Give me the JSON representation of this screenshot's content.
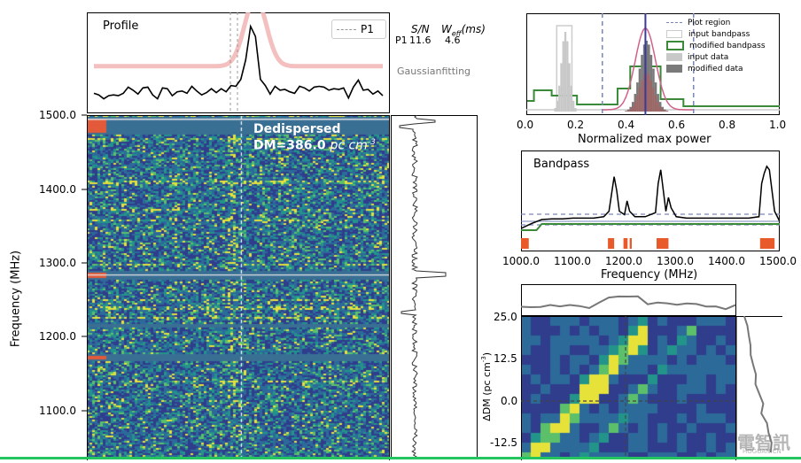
{
  "profile": {
    "title": "Profile",
    "legend_label": "P1",
    "sn_header": "S/N",
    "weff_header": "W",
    "weff_sub": "eff",
    "weff_unit": "(ms)",
    "row_label": "P1",
    "sn_value": "11.6",
    "weff_value": "4.6",
    "fit_label": "Gaussianfitting",
    "colors": {
      "profile_line": "#000000",
      "fit_line": "#f2b8b8",
      "marker": "#888888"
    }
  },
  "waterfall": {
    "title": "Dedispersed",
    "dm_label": "DM=386.0",
    "dm_unit": "pc cm",
    "dm_unit_exp": "-3",
    "ylabel": "Frequency (MHz)",
    "ytick_labels": [
      "1500.0",
      "1400.0",
      "1300.0",
      "1200.0",
      "1100.0"
    ],
    "colormap": [
      "#2f3d8c",
      "#2c6a9a",
      "#22948a",
      "#5cc06a",
      "#e6e23a"
    ]
  },
  "hist": {
    "xlabel": "Normalized max power",
    "xtick_labels": [
      "0.0",
      "0.2",
      "0.4",
      "0.6",
      "0.8",
      "1.0"
    ],
    "legend": [
      "Plot region",
      "input bandpass",
      "modified bandpass",
      "input data",
      "modified data"
    ]
  },
  "bandpass": {
    "title": "Bandpass",
    "xlabel": "Frequency (MHz)",
    "xtick_labels": [
      "1000.0",
      "1100.0",
      "1200.0",
      "1300.0",
      "1400.0",
      "1500.0"
    ]
  },
  "dmplot": {
    "ylabel": "ΔDM (pc cm",
    "ylabel_exp": "-3",
    "ylabel_close": ")",
    "ytick_labels": [
      "25.0",
      "12.5",
      "0.0",
      "-12.5"
    ]
  },
  "watermark": {
    "text": "電智訊",
    "sub": "HOGUAN.CN"
  },
  "chart_data": [
    {
      "type": "line",
      "name": "profile",
      "x": [
        0,
        1,
        2,
        3,
        4,
        5,
        6,
        7,
        8,
        9,
        10,
        11,
        12,
        13,
        14,
        15,
        16,
        17,
        18,
        19,
        20,
        21,
        22,
        23,
        24,
        25,
        26,
        27,
        28,
        29,
        30,
        31,
        32,
        33,
        34,
        35,
        36,
        37,
        38,
        39,
        40,
        41,
        42,
        43,
        44,
        45,
        46,
        47,
        48,
        49,
        50,
        51,
        52,
        53,
        54,
        55,
        56,
        57,
        58,
        59
      ],
      "values": [
        0.12,
        0.1,
        0.05,
        0.09,
        0.1,
        0.09,
        0.12,
        0.2,
        0.16,
        0.11,
        0.19,
        0.2,
        0.1,
        0.05,
        0.19,
        0.18,
        0.09,
        0.14,
        0.15,
        0.12,
        0.21,
        0.15,
        0.1,
        0.13,
        0.18,
        0.13,
        0.18,
        0.14,
        0.22,
        0.21,
        0.3,
        0.55,
        0.98,
        0.85,
        0.3,
        0.22,
        0.11,
        0.21,
        0.16,
        0.17,
        0.14,
        0.12,
        0.21,
        0.19,
        0.15,
        0.2,
        0.21,
        0.2,
        0.16,
        0.18,
        0.17,
        0.19,
        0.06,
        0.2,
        0.29,
        0.16,
        0.17,
        0.11,
        0.15,
        0.09
      ],
      "fit_center": 33,
      "fit_width": 2.2,
      "fit_amplitude": 0.88,
      "fit_baseline": 0.15
    },
    {
      "type": "heatmap",
      "name": "dedispersed waterfall",
      "ylim": [
        1050,
        1500
      ],
      "yticks": [
        1500,
        1400,
        1300,
        1200,
        1100
      ],
      "pulse_column_fraction": 0.51,
      "masked_channels_mhz": [
        1490,
        1485,
        1287,
        1285,
        1200,
        1178
      ]
    },
    {
      "type": "line",
      "name": "normalized max power histogram",
      "xlim": [
        0,
        1
      ],
      "xticks": [
        0.0,
        0.2,
        0.4,
        0.6,
        0.8,
        1.0
      ],
      "plot_region": [
        0.3,
        0.66
      ],
      "input_bandpass_peak": 0.16,
      "modified_bandpass_peak": 0.47,
      "input_data_peak": 0.15,
      "modified_data_peak": 0.47
    },
    {
      "type": "line",
      "name": "bandpass",
      "xlim": [
        1000,
        1500
      ],
      "xticks": [
        1000,
        1100,
        1200,
        1300,
        1400,
        1500
      ],
      "x": [
        1000,
        1020,
        1040,
        1060,
        1080,
        1100,
        1120,
        1140,
        1160,
        1170,
        1175,
        1180,
        1185,
        1190,
        1200,
        1205,
        1210,
        1220,
        1240,
        1260,
        1265,
        1270,
        1275,
        1280,
        1285,
        1290,
        1300,
        1320,
        1340,
        1360,
        1380,
        1400,
        1420,
        1440,
        1460,
        1465,
        1470,
        1475,
        1480,
        1490,
        1500
      ],
      "values": [
        0.05,
        0.12,
        0.18,
        0.19,
        0.19,
        0.2,
        0.2,
        0.2,
        0.22,
        0.3,
        0.55,
        0.8,
        0.6,
        0.3,
        0.25,
        0.45,
        0.3,
        0.22,
        0.22,
        0.28,
        0.7,
        0.9,
        0.6,
        0.3,
        0.5,
        0.35,
        0.22,
        0.2,
        0.2,
        0.2,
        0.2,
        0.2,
        0.2,
        0.2,
        0.22,
        0.7,
        0.85,
        0.95,
        0.9,
        0.3,
        0.15
      ],
      "masked_ranges_mhz": [
        [
          1000,
          1015
        ],
        [
          1168,
          1180
        ],
        [
          1198,
          1206
        ],
        [
          1210,
          1214
        ],
        [
          1262,
          1285
        ],
        [
          1462,
          1490
        ]
      ]
    },
    {
      "type": "heatmap",
      "name": "dm time",
      "ylim": [
        -20,
        25
      ],
      "yticks": [
        25.0,
        12.5,
        0.0,
        -12.5
      ]
    }
  ]
}
